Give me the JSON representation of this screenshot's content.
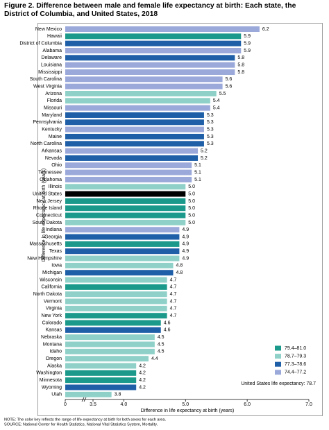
{
  "chart_data": {
    "type": "bar",
    "orientation": "horizontal",
    "title": "Figure 2. Difference between male and female life expectancy at birth: Each state, the District of Columbia, and United States, 2018",
    "categories": [
      "New Mexico",
      "Hawaii",
      "District of Columbia",
      "Alabama",
      "Delaware",
      "Louisiana",
      "Mississippi",
      "South Carolina",
      "West Virginia",
      "Arizona",
      "Florida",
      "Missouri",
      "Maryland",
      "Pennsylvania",
      "Kentucky",
      "Maine",
      "North Carolina",
      "Arkansas",
      "Nevada",
      "Ohio",
      "Tennessee",
      "Oklahoma",
      "Illinois",
      "United States",
      "New Jersey",
      "Rhode Island",
      "Connecticut",
      "South Dakota",
      "Indiana",
      "Georgia",
      "Massachusetts",
      "Texas",
      "New Hampshire",
      "Iowa",
      "Michigan",
      "Wisconsin",
      "California",
      "North Dakota",
      "Vermont",
      "Virginia",
      "New York",
      "Colorado",
      "Kansas",
      "Nebraska",
      "Montana",
      "Idaho",
      "Oregon",
      "Alaska",
      "Washington",
      "Minnesota",
      "Wyoming",
      "Utah"
    ],
    "values": [
      6.2,
      5.9,
      5.9,
      5.9,
      5.8,
      5.8,
      5.8,
      5.6,
      5.6,
      5.5,
      5.4,
      5.4,
      5.3,
      5.3,
      5.3,
      5.3,
      5.3,
      5.2,
      5.2,
      5.1,
      5.1,
      5.1,
      5.0,
      5.0,
      5.0,
      5.0,
      5.0,
      5.0,
      4.9,
      4.9,
      4.9,
      4.9,
      4.9,
      4.8,
      4.8,
      4.7,
      4.7,
      4.7,
      4.7,
      4.7,
      4.7,
      4.6,
      4.6,
      4.5,
      4.5,
      4.5,
      4.4,
      4.2,
      4.2,
      4.2,
      4.2,
      3.8
    ],
    "value_labels": [
      "6.2",
      "5.9",
      "5.9",
      "5.9",
      "5.8",
      "5.8",
      "5.8",
      "5.6",
      "5.6",
      "5.5",
      "5.4",
      "5.4",
      "5.3",
      "5.3",
      "5.3",
      "5.3",
      "5.3",
      "5.2",
      "5.2",
      "5.1",
      "5.1",
      "5.1",
      "5.0",
      "5.0",
      "5.0",
      "5.0",
      "5.0",
      "5.0",
      "4.9",
      "4.9",
      "4.9",
      "4.9",
      "4.9",
      "4.8",
      "4.8",
      "4.7",
      "4.7",
      "4.7",
      "4.7",
      "4.7",
      "4.7",
      "4.6",
      "4.6",
      "4.5",
      "4.5",
      "4.5",
      "4.4",
      "4.2",
      "4.2",
      "4.2",
      "4.2",
      "3.8"
    ],
    "colors": [
      "#9ba9da",
      "#1b9a8b",
      "#1f5fa8",
      "#9ba9da",
      "#1f5fa8",
      "#9ba9da",
      "#9ba9da",
      "#9ba9da",
      "#9ba9da",
      "#8fd1c8",
      "#8fd1c8",
      "#9ba9da",
      "#1f5fa8",
      "#1f5fa8",
      "#9ba9da",
      "#1f5fa8",
      "#1f5fa8",
      "#9ba9da",
      "#1f5fa8",
      "#9ba9da",
      "#9ba9da",
      "#9ba9da",
      "#8fd1c8",
      "#000000",
      "#1b9a8b",
      "#1b9a8b",
      "#1b9a8b",
      "#8fd1c8",
      "#9ba9da",
      "#1f5fa8",
      "#1b9a8b",
      "#1f5fa8",
      "#8fd1c8",
      "#8fd1c8",
      "#1f5fa8",
      "#8fd1c8",
      "#1b9a8b",
      "#8fd1c8",
      "#8fd1c8",
      "#8fd1c8",
      "#1b9a8b",
      "#1b9a8b",
      "#1f5fa8",
      "#8fd1c8",
      "#8fd1c8",
      "#8fd1c8",
      "#8fd1c8",
      "#8fd1c8",
      "#1b9a8b",
      "#1b9a8b",
      "#1f5fa8",
      "#8fd1c8"
    ],
    "xlim": [
      0,
      7
    ],
    "xticks": [
      0,
      3.5,
      {
        "value": 4,
        "label": "4.0"
      },
      {
        "value": 5,
        "label": "5.0"
      },
      {
        "value": 6,
        "label": "6.0"
      },
      {
        "value": 7,
        "label": "7.0"
      }
    ],
    "axis_break": true,
    "xlabel": "Difference in life expectancy at birth (years)",
    "ylabel": "Difference in life expectancy at birth (years)",
    "legend": {
      "position": "lower right",
      "items": [
        {
          "label": "79.4–81.0",
          "color": "#1b9a8b"
        },
        {
          "label": "78.7–79.3",
          "color": "#8fd1c8"
        },
        {
          "label": "77.3–78.6",
          "color": "#1f5fa8"
        },
        {
          "label": "74.4–77.2",
          "color": "#9ba9da"
        }
      ]
    },
    "annotation": "United States life expectancy: 78.7",
    "note": "NOTE: The color key reflects the range of life expectancy at birth for both sexes for each area.",
    "source": "SOURCE: National Center for Health Statistics, National Vital Statistics System, Mortality."
  }
}
